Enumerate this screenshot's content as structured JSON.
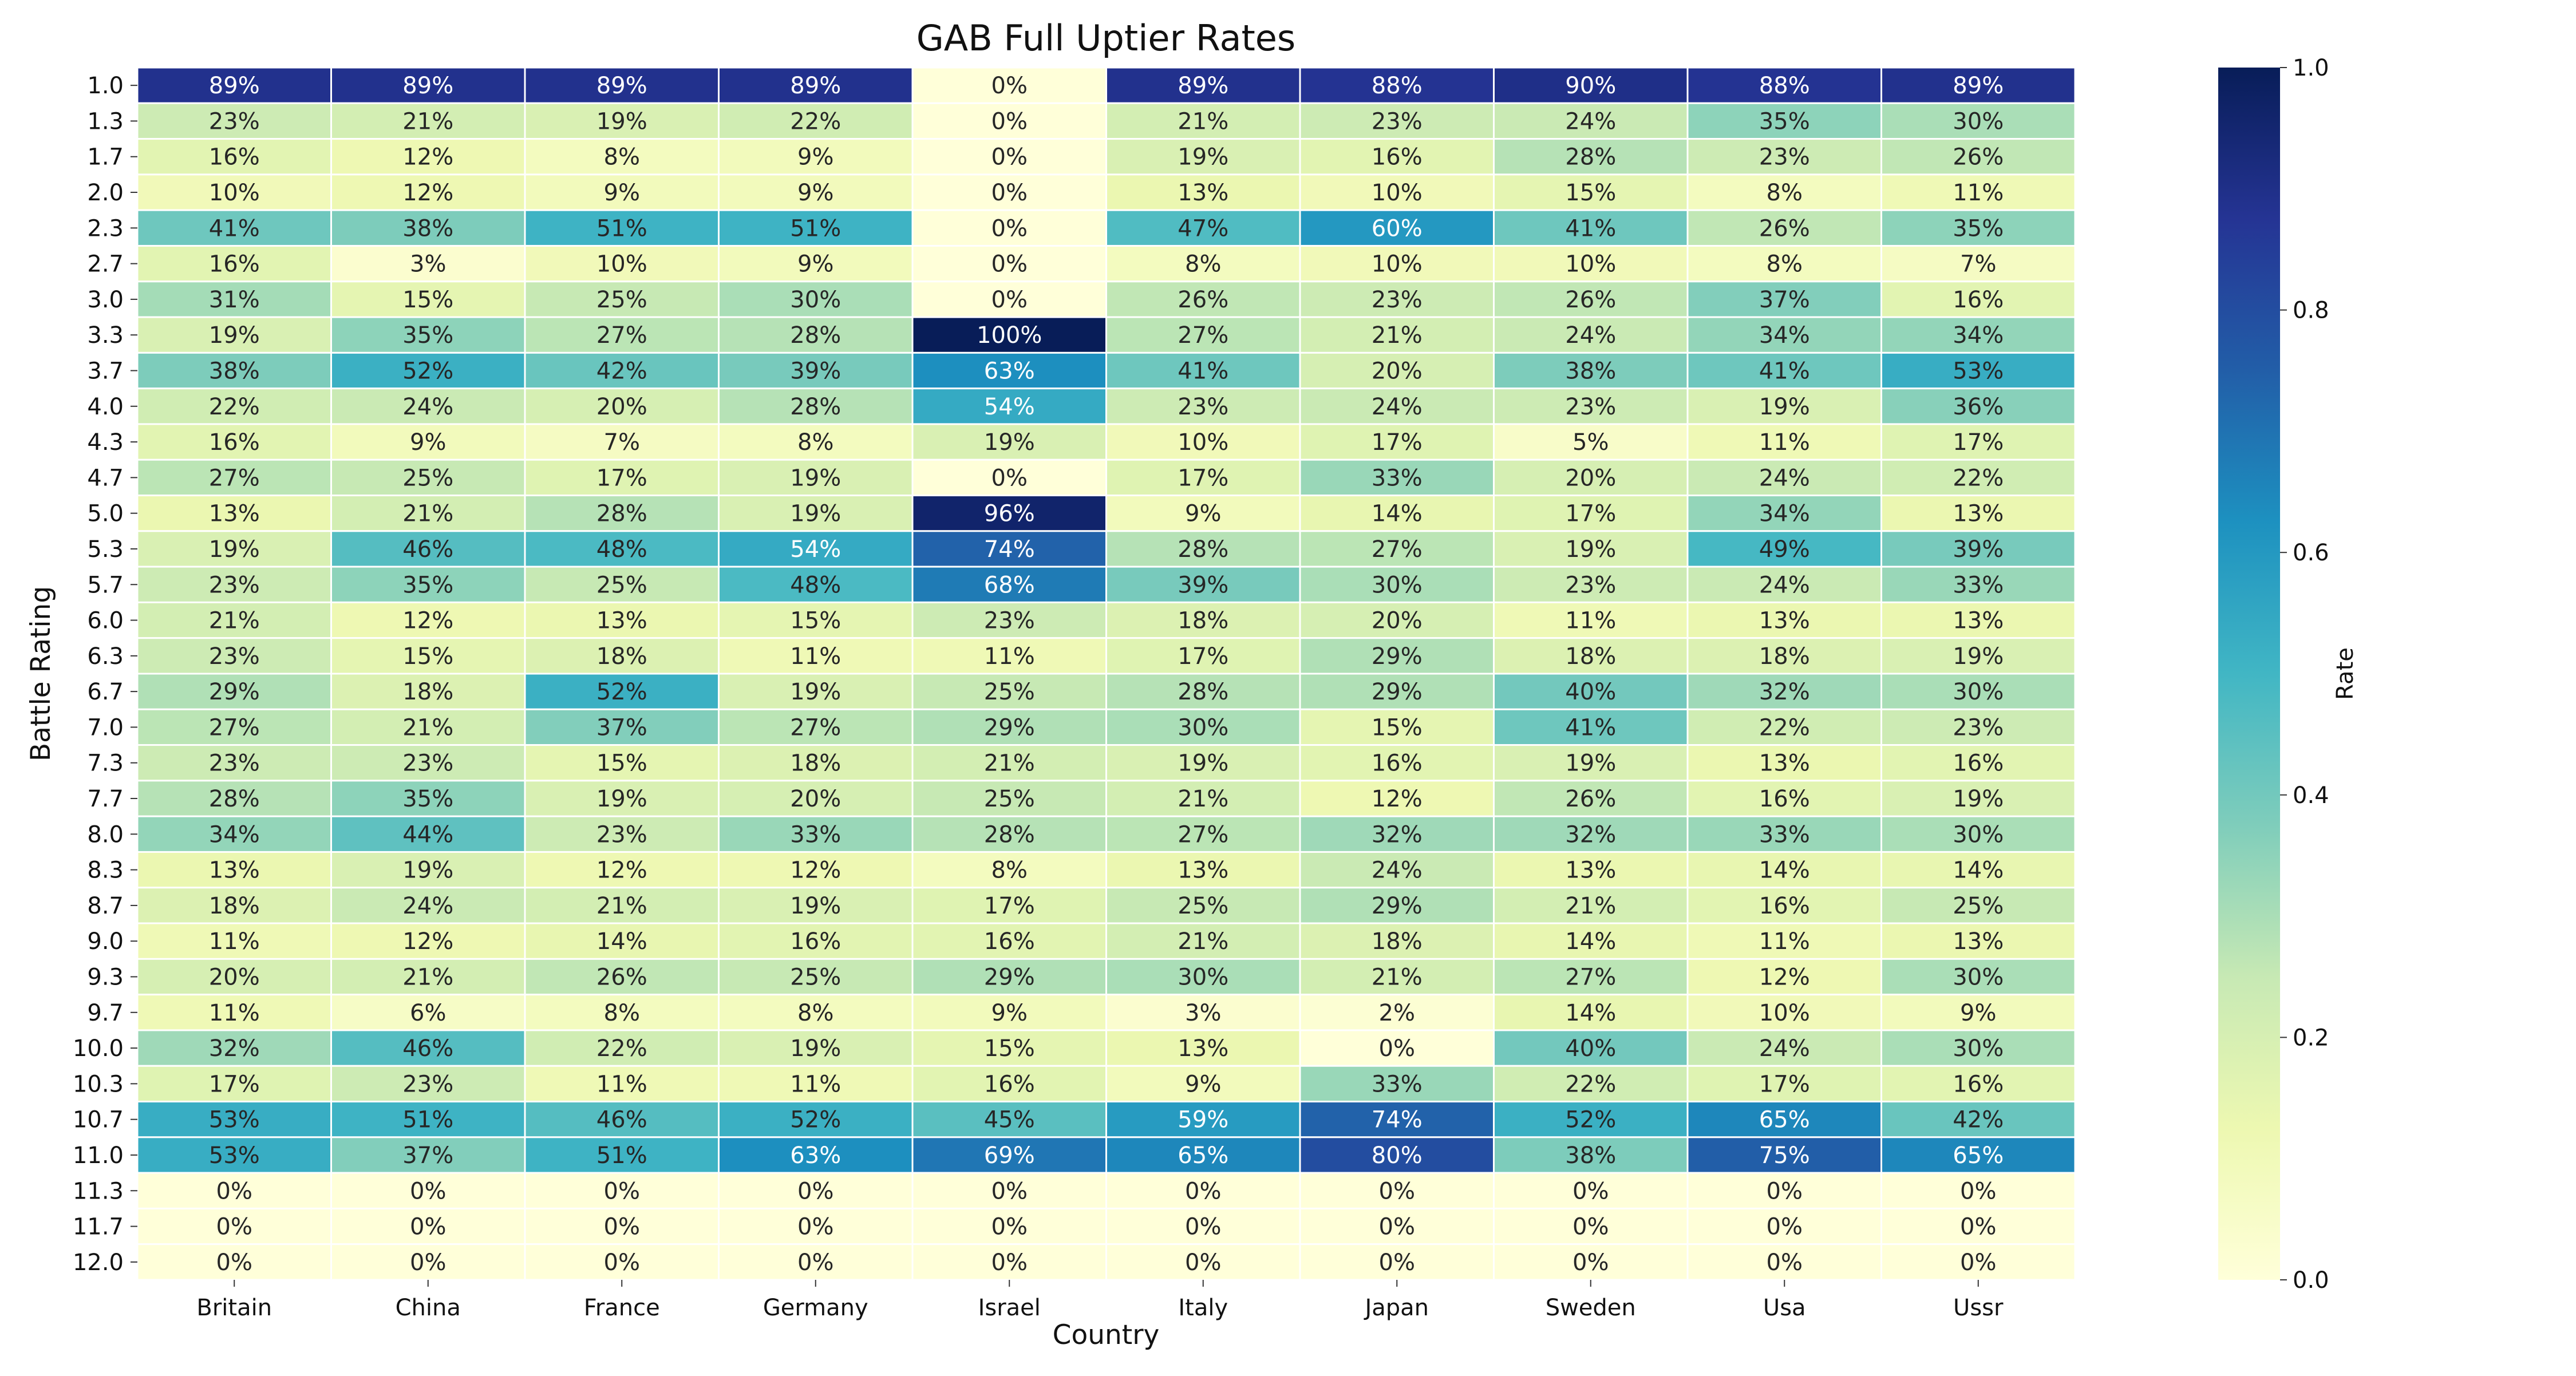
{
  "chart_data": {
    "type": "heatmap",
    "title": "GAB Full Uptier Rates",
    "xlabel": "Country",
    "ylabel": "Battle Rating",
    "x_categories": [
      "Britain",
      "China",
      "France",
      "Germany",
      "Israel",
      "Italy",
      "Japan",
      "Sweden",
      "Usa",
      "Ussr"
    ],
    "y_categories": [
      "1.0",
      "1.3",
      "1.7",
      "2.0",
      "2.3",
      "2.7",
      "3.0",
      "3.3",
      "3.7",
      "4.0",
      "4.3",
      "4.7",
      "5.0",
      "5.3",
      "5.7",
      "6.0",
      "6.3",
      "6.7",
      "7.0",
      "7.3",
      "7.7",
      "8.0",
      "8.3",
      "8.7",
      "9.0",
      "9.3",
      "9.7",
      "10.0",
      "10.3",
      "10.7",
      "11.0",
      "11.3",
      "11.7",
      "12.0"
    ],
    "values": [
      [
        0.89,
        0.89,
        0.89,
        0.89,
        0.0,
        0.89,
        0.88,
        0.9,
        0.88,
        0.89
      ],
      [
        0.23,
        0.21,
        0.19,
        0.22,
        0.0,
        0.21,
        0.23,
        0.24,
        0.35,
        0.3
      ],
      [
        0.16,
        0.12,
        0.08,
        0.09,
        0.0,
        0.19,
        0.16,
        0.28,
        0.23,
        0.26
      ],
      [
        0.1,
        0.12,
        0.09,
        0.09,
        0.0,
        0.13,
        0.1,
        0.15,
        0.08,
        0.11
      ],
      [
        0.41,
        0.38,
        0.51,
        0.51,
        0.0,
        0.47,
        0.6,
        0.41,
        0.26,
        0.35
      ],
      [
        0.16,
        0.03,
        0.1,
        0.09,
        0.0,
        0.08,
        0.1,
        0.1,
        0.08,
        0.07
      ],
      [
        0.31,
        0.15,
        0.25,
        0.3,
        0.0,
        0.26,
        0.23,
        0.26,
        0.37,
        0.16
      ],
      [
        0.19,
        0.35,
        0.27,
        0.28,
        1.0,
        0.27,
        0.21,
        0.24,
        0.34,
        0.34
      ],
      [
        0.38,
        0.52,
        0.42,
        0.39,
        0.63,
        0.41,
        0.2,
        0.38,
        0.41,
        0.53
      ],
      [
        0.22,
        0.24,
        0.2,
        0.28,
        0.54,
        0.23,
        0.24,
        0.23,
        0.19,
        0.36
      ],
      [
        0.16,
        0.09,
        0.07,
        0.08,
        0.19,
        0.1,
        0.17,
        0.05,
        0.11,
        0.17
      ],
      [
        0.27,
        0.25,
        0.17,
        0.19,
        0.0,
        0.17,
        0.33,
        0.2,
        0.24,
        0.22
      ],
      [
        0.13,
        0.21,
        0.28,
        0.19,
        0.96,
        0.09,
        0.14,
        0.17,
        0.34,
        0.13
      ],
      [
        0.19,
        0.46,
        0.48,
        0.54,
        0.74,
        0.28,
        0.27,
        0.19,
        0.49,
        0.39
      ],
      [
        0.23,
        0.35,
        0.25,
        0.48,
        0.68,
        0.39,
        0.3,
        0.23,
        0.24,
        0.33
      ],
      [
        0.21,
        0.12,
        0.13,
        0.15,
        0.23,
        0.18,
        0.2,
        0.11,
        0.13,
        0.13
      ],
      [
        0.23,
        0.15,
        0.18,
        0.11,
        0.11,
        0.17,
        0.29,
        0.18,
        0.18,
        0.19
      ],
      [
        0.29,
        0.18,
        0.52,
        0.19,
        0.25,
        0.28,
        0.29,
        0.4,
        0.32,
        0.3
      ],
      [
        0.27,
        0.21,
        0.37,
        0.27,
        0.29,
        0.3,
        0.15,
        0.41,
        0.22,
        0.23
      ],
      [
        0.23,
        0.23,
        0.15,
        0.18,
        0.21,
        0.19,
        0.16,
        0.19,
        0.13,
        0.16
      ],
      [
        0.28,
        0.35,
        0.19,
        0.2,
        0.25,
        0.21,
        0.12,
        0.26,
        0.16,
        0.19
      ],
      [
        0.34,
        0.44,
        0.23,
        0.33,
        0.28,
        0.27,
        0.32,
        0.32,
        0.33,
        0.3
      ],
      [
        0.13,
        0.19,
        0.12,
        0.12,
        0.08,
        0.13,
        0.24,
        0.13,
        0.14,
        0.14
      ],
      [
        0.18,
        0.24,
        0.21,
        0.19,
        0.17,
        0.25,
        0.29,
        0.21,
        0.16,
        0.25
      ],
      [
        0.11,
        0.12,
        0.14,
        0.16,
        0.16,
        0.21,
        0.18,
        0.14,
        0.11,
        0.13
      ],
      [
        0.2,
        0.21,
        0.26,
        0.25,
        0.29,
        0.3,
        0.21,
        0.27,
        0.12,
        0.3
      ],
      [
        0.11,
        0.06,
        0.08,
        0.08,
        0.09,
        0.03,
        0.02,
        0.14,
        0.1,
        0.09
      ],
      [
        0.32,
        0.46,
        0.22,
        0.19,
        0.15,
        0.13,
        0.0,
        0.4,
        0.24,
        0.3
      ],
      [
        0.17,
        0.23,
        0.11,
        0.11,
        0.16,
        0.09,
        0.33,
        0.22,
        0.17,
        0.16
      ],
      [
        0.53,
        0.51,
        0.46,
        0.52,
        0.45,
        0.59,
        0.74,
        0.52,
        0.65,
        0.42
      ],
      [
        0.53,
        0.37,
        0.51,
        0.63,
        0.69,
        0.65,
        0.8,
        0.38,
        0.75,
        0.65
      ],
      [
        0.0,
        0.0,
        0.0,
        0.0,
        0.0,
        0.0,
        0.0,
        0.0,
        0.0,
        0.0
      ],
      [
        0.0,
        0.0,
        0.0,
        0.0,
        0.0,
        0.0,
        0.0,
        0.0,
        0.0,
        0.0
      ],
      [
        0.0,
        0.0,
        0.0,
        0.0,
        0.0,
        0.0,
        0.0,
        0.0,
        0.0,
        0.0
      ]
    ],
    "value_format": "percent",
    "colormap": "YlGnBu",
    "colorbar": {
      "label": "Rate",
      "ticks": [
        "0.0",
        "0.2",
        "0.4",
        "0.6",
        "0.8",
        "1.0"
      ],
      "range": [
        0,
        1
      ]
    },
    "colors": [
      "#ffffd9",
      "#edf8b1",
      "#c7e9b4",
      "#7fcdbb",
      "#41b6c4",
      "#1d91c0",
      "#225ea8",
      "#253494",
      "#081d58"
    ],
    "grid": false,
    "legend": "right"
  }
}
